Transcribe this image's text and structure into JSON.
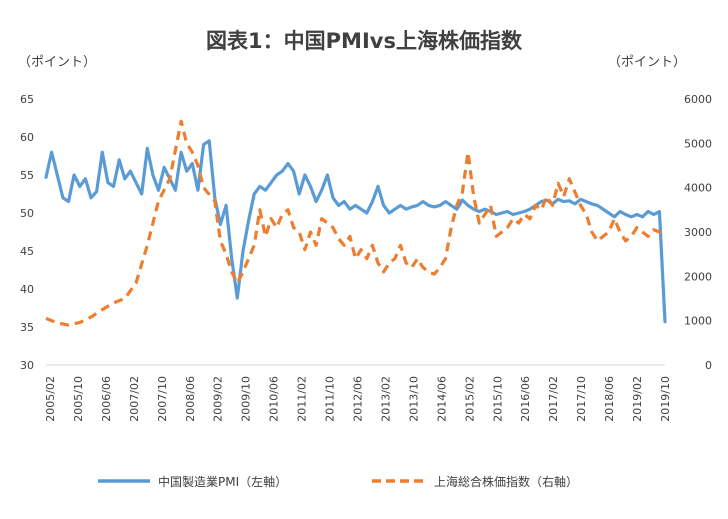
{
  "chart_data": {
    "type": "line",
    "title": "図表1：中国PMIvs上海株価指数",
    "left_axis_unit": "（ポイント）",
    "right_axis_unit": "（ポイント）",
    "ylim_left": [
      30,
      65
    ],
    "yticks_left": [
      "65",
      "60",
      "55",
      "50",
      "45",
      "40",
      "35",
      "30"
    ],
    "ylim_right": [
      0,
      6000
    ],
    "yticks_right": [
      "6000",
      "5000",
      "4000",
      "3000",
      "2000",
      "1000",
      "0"
    ],
    "x_tick_labels": [
      "2005/02",
      "2005/10",
      "2006/06",
      "2007/02",
      "2007/10",
      "2008/06",
      "2009/02",
      "2009/10",
      "2010/06",
      "2011/02",
      "2011/10",
      "2012/06",
      "2013/02",
      "2013/10",
      "2014/06",
      "2015/02",
      "2015/10",
      "2016/06",
      "2017/02",
      "2017/10",
      "2018/06",
      "2019/02",
      "2019/10"
    ],
    "series": [
      {
        "name": "中国製造業PMI（左軸）",
        "axis": "left",
        "color": "#5b9bd5",
        "style": "solid",
        "points": [
          [
            0,
            54.7
          ],
          [
            1,
            58.0
          ],
          [
            2,
            55.0
          ],
          [
            3,
            52.0
          ],
          [
            4,
            51.5
          ],
          [
            5,
            55.0
          ],
          [
            6,
            53.5
          ],
          [
            7,
            54.5
          ],
          [
            8,
            52.0
          ],
          [
            9,
            52.8
          ],
          [
            10,
            58.0
          ],
          [
            11,
            54.0
          ],
          [
            12,
            53.5
          ],
          [
            13,
            57.0
          ],
          [
            14,
            54.5
          ],
          [
            15,
            55.5
          ],
          [
            16,
            54.0
          ],
          [
            17,
            52.5
          ],
          [
            18,
            58.5
          ],
          [
            19,
            55.0
          ],
          [
            20,
            53.0
          ],
          [
            21,
            56.0
          ],
          [
            22,
            54.5
          ],
          [
            23,
            53.0
          ],
          [
            24,
            58.0
          ],
          [
            25,
            55.5
          ],
          [
            26,
            56.5
          ],
          [
            27,
            53.0
          ],
          [
            28,
            59.0
          ],
          [
            29,
            59.5
          ],
          [
            30,
            52.0
          ],
          [
            31,
            48.5
          ],
          [
            32,
            51.0
          ],
          [
            33,
            44.0
          ],
          [
            34,
            38.8
          ],
          [
            35,
            45.0
          ],
          [
            36,
            49.0
          ],
          [
            37,
            52.5
          ],
          [
            38,
            53.5
          ],
          [
            39,
            53.0
          ],
          [
            40,
            54.0
          ],
          [
            41,
            55.0
          ],
          [
            42,
            55.5
          ],
          [
            43,
            56.5
          ],
          [
            44,
            55.5
          ],
          [
            45,
            52.5
          ],
          [
            46,
            55.0
          ],
          [
            47,
            53.5
          ],
          [
            48,
            51.5
          ],
          [
            49,
            53.0
          ],
          [
            50,
            55.0
          ],
          [
            51,
            52.0
          ],
          [
            52,
            51.0
          ],
          [
            53,
            51.5
          ],
          [
            54,
            50.5
          ],
          [
            55,
            51.0
          ],
          [
            56,
            50.5
          ],
          [
            57,
            50.0
          ],
          [
            58,
            51.5
          ],
          [
            59,
            53.5
          ],
          [
            60,
            51.0
          ],
          [
            61,
            50.0
          ],
          [
            62,
            50.5
          ],
          [
            63,
            51.0
          ],
          [
            64,
            50.5
          ],
          [
            65,
            50.8
          ],
          [
            66,
            51.0
          ],
          [
            67,
            51.5
          ],
          [
            68,
            51.0
          ],
          [
            69,
            50.8
          ],
          [
            70,
            51.0
          ],
          [
            71,
            51.5
          ],
          [
            72,
            51.0
          ],
          [
            73,
            50.5
          ],
          [
            74,
            51.7
          ],
          [
            75,
            51.0
          ],
          [
            76,
            50.5
          ],
          [
            77,
            50.2
          ],
          [
            78,
            50.5
          ],
          [
            79,
            50.2
          ],
          [
            80,
            49.8
          ],
          [
            81,
            50.0
          ],
          [
            82,
            50.2
          ],
          [
            83,
            49.8
          ],
          [
            84,
            50.0
          ],
          [
            85,
            50.2
          ],
          [
            86,
            50.5
          ],
          [
            87,
            51.0
          ],
          [
            88,
            51.5
          ],
          [
            89,
            51.7
          ],
          [
            90,
            51.2
          ],
          [
            91,
            51.8
          ],
          [
            92,
            51.5
          ],
          [
            93,
            51.6
          ],
          [
            94,
            51.2
          ],
          [
            95,
            51.8
          ],
          [
            96,
            51.5
          ],
          [
            97,
            51.2
          ],
          [
            98,
            51.0
          ],
          [
            99,
            50.5
          ],
          [
            100,
            50.0
          ],
          [
            101,
            49.5
          ],
          [
            102,
            50.2
          ],
          [
            103,
            49.8
          ],
          [
            104,
            49.5
          ],
          [
            105,
            49.8
          ],
          [
            106,
            49.5
          ],
          [
            107,
            50.2
          ],
          [
            108,
            49.8
          ],
          [
            109,
            50.2
          ],
          [
            110,
            35.7
          ]
        ]
      },
      {
        "name": "上海総合株価指数（右軸）",
        "axis": "right",
        "color": "#ed7d31",
        "style": "dashed",
        "points": [
          [
            0,
            1050
          ],
          [
            2,
            950
          ],
          [
            4,
            900
          ],
          [
            6,
            960
          ],
          [
            8,
            1080
          ],
          [
            10,
            1250
          ],
          [
            12,
            1400
          ],
          [
            14,
            1500
          ],
          [
            16,
            1850
          ],
          [
            18,
            2700
          ],
          [
            20,
            3700
          ],
          [
            22,
            4200
          ],
          [
            24,
            5500
          ],
          [
            25,
            5000
          ],
          [
            26,
            4800
          ],
          [
            27,
            4500
          ],
          [
            28,
            4000
          ],
          [
            30,
            3700
          ],
          [
            31,
            2800
          ],
          [
            32,
            2500
          ],
          [
            33,
            2100
          ],
          [
            34,
            1850
          ],
          [
            35,
            2100
          ],
          [
            36,
            2400
          ],
          [
            37,
            2700
          ],
          [
            38,
            3500
          ],
          [
            39,
            2900
          ],
          [
            40,
            3300
          ],
          [
            41,
            3100
          ],
          [
            42,
            3400
          ],
          [
            43,
            3500
          ],
          [
            44,
            3100
          ],
          [
            45,
            3000
          ],
          [
            46,
            2600
          ],
          [
            47,
            3000
          ],
          [
            48,
            2700
          ],
          [
            49,
            3300
          ],
          [
            50,
            3200
          ],
          [
            51,
            3100
          ],
          [
            52,
            2850
          ],
          [
            53,
            2700
          ],
          [
            54,
            2900
          ],
          [
            55,
            2400
          ],
          [
            56,
            2600
          ],
          [
            57,
            2400
          ],
          [
            58,
            2700
          ],
          [
            59,
            2300
          ],
          [
            60,
            2100
          ],
          [
            61,
            2300
          ],
          [
            62,
            2400
          ],
          [
            63,
            2700
          ],
          [
            64,
            2300
          ],
          [
            65,
            2200
          ],
          [
            66,
            2400
          ],
          [
            67,
            2200
          ],
          [
            68,
            2100
          ],
          [
            69,
            2050
          ],
          [
            70,
            2200
          ],
          [
            71,
            2400
          ],
          [
            72,
            3100
          ],
          [
            73,
            3600
          ],
          [
            74,
            3900
          ],
          [
            75,
            4800
          ],
          [
            76,
            3800
          ],
          [
            77,
            3200
          ],
          [
            78,
            3400
          ],
          [
            79,
            3600
          ],
          [
            80,
            2900
          ],
          [
            81,
            3000
          ],
          [
            82,
            3100
          ],
          [
            83,
            3300
          ],
          [
            84,
            3200
          ],
          [
            85,
            3400
          ],
          [
            86,
            3300
          ],
          [
            87,
            3600
          ],
          [
            88,
            3500
          ],
          [
            89,
            3800
          ],
          [
            90,
            3600
          ],
          [
            91,
            4100
          ],
          [
            92,
            3800
          ],
          [
            93,
            4200
          ],
          [
            94,
            3900
          ],
          [
            95,
            3600
          ],
          [
            96,
            3400
          ],
          [
            97,
            3000
          ],
          [
            98,
            2800
          ],
          [
            99,
            2900
          ],
          [
            100,
            3000
          ],
          [
            101,
            3300
          ],
          [
            102,
            3000
          ],
          [
            103,
            2800
          ],
          [
            104,
            2900
          ],
          [
            105,
            3100
          ],
          [
            106,
            3000
          ],
          [
            107,
            2900
          ],
          [
            108,
            3050
          ],
          [
            109,
            3000
          ],
          [
            110,
            2900
          ]
        ]
      }
    ]
  },
  "legend": {
    "pmi_label": "中国製造業PMI（左軸）",
    "stock_label": "上海総合株価指数（右軸）"
  }
}
